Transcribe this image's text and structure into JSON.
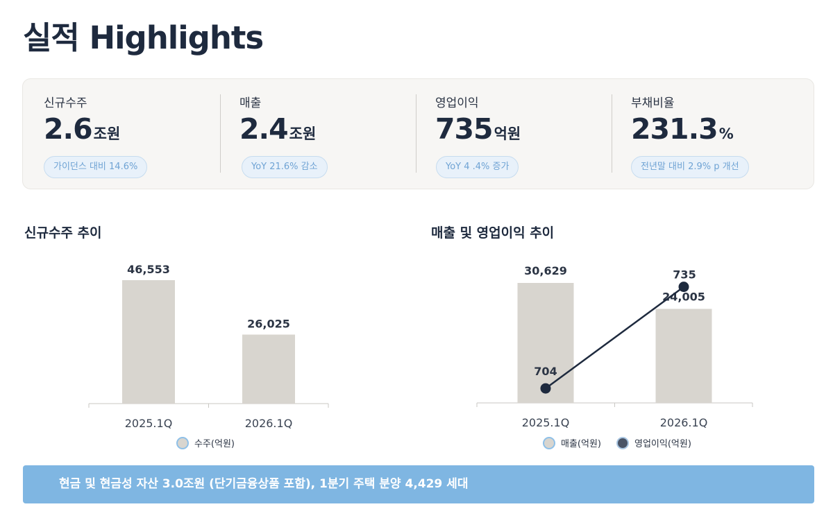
{
  "header": {
    "title": "실적 Highlights"
  },
  "kpis": [
    {
      "label": "신규수주",
      "value": "2.6",
      "unit": "조원",
      "badge": "가이던스 대비 14.6%"
    },
    {
      "label": "매출",
      "value": "2.4",
      "unit": "조원",
      "badge": "YoY 21.6% 감소"
    },
    {
      "label": "영업이익",
      "value": "735",
      "unit": "억원",
      "badge": "YoY 4 .4% 증가"
    },
    {
      "label": "부채비율",
      "value": "231.3",
      "unit": "%",
      "badge": "전년말 대비 2.9% p 개선"
    }
  ],
  "chart_data": [
    {
      "type": "bar",
      "title": "신규수주 추이",
      "categories": [
        "2025.1Q",
        "2026.1Q"
      ],
      "series": [
        {
          "name": "수주(억원)",
          "values": [
            46553,
            26025
          ],
          "labels": [
            "46,553",
            "26,025"
          ],
          "color": "#d8d5cf"
        }
      ],
      "legend": "bottom"
    },
    {
      "type": "bar",
      "title": "매출 및 영업이익 추이",
      "categories": [
        "2025.1Q",
        "2026.1Q"
      ],
      "series": [
        {
          "name": "매출(억원)",
          "type": "bar",
          "values": [
            30629,
            24005
          ],
          "labels": [
            "30,629",
            "24,005"
          ],
          "color": "#d8d5cf"
        },
        {
          "name": "영업이익(억원)",
          "type": "line",
          "values": [
            704,
            735
          ],
          "labels": [
            "704",
            "735"
          ],
          "color": "#1e2a3e"
        }
      ],
      "legend": "bottom"
    }
  ],
  "banner": {
    "text": "현금 및 현금성 자산 3.0조원 (단기금융상품 포함),  1분기 주택 분양  4,429 세대",
    "color": "#7fb6e2"
  },
  "colors": {
    "accent": "#1e2a3e",
    "badge_text": "#6fa3d4",
    "bar": "#d8d5cf"
  }
}
